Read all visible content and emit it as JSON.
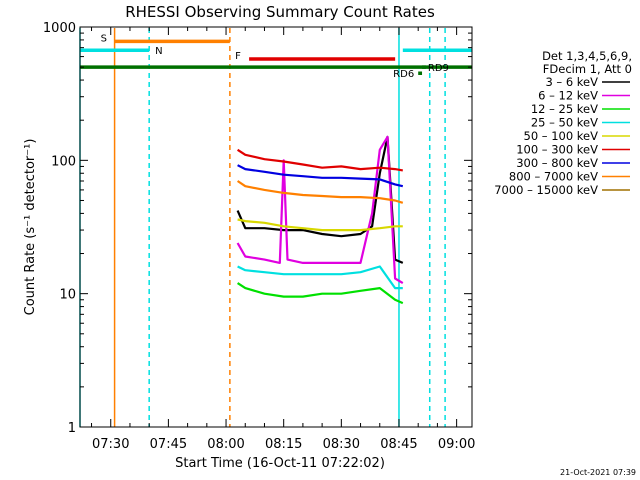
{
  "chart_data": {
    "type": "line",
    "title": "RHESSI Observing Summary Count Rates",
    "xlabel": "Start Time (16-Oct-11 07:22:02)",
    "ylabel": "Count Rate (s⁻¹ detector⁻¹)",
    "x_scale": "time",
    "y_scale": "log",
    "xlim": [
      "07:22",
      "09:04"
    ],
    "ylim": [
      1,
      1000
    ],
    "x_ticks": [
      "07:30",
      "07:45",
      "08:00",
      "08:15",
      "08:30",
      "08:45",
      "09:00"
    ],
    "y_ticks": [
      "1",
      "10",
      "100",
      "1000"
    ],
    "legend": {
      "position": "right",
      "header": [
        "Det 1,3,4,5,6,9,",
        "FDecim 1, Att 0"
      ],
      "entries": [
        {
          "label": "3 – 6 keV",
          "color": "#000000"
        },
        {
          "label": "6 – 12 keV",
          "color": "#e000e0"
        },
        {
          "label": "12 – 25 keV",
          "color": "#00e000"
        },
        {
          "label": "25 – 50 keV",
          "color": "#00e0e0"
        },
        {
          "label": "50 – 100 keV",
          "color": "#d8d800"
        },
        {
          "label": "100 – 300 keV",
          "color": "#e00000"
        },
        {
          "label": "300 – 800 keV",
          "color": "#0000e0"
        },
        {
          "label": "800 – 7000 keV",
          "color": "#ff8000"
        },
        {
          "label": "7000 – 15000 keV",
          "color": "#a07000"
        }
      ]
    },
    "series": [
      {
        "name": "3 – 6 keV",
        "color": "#000000",
        "x": [
          "08:03",
          "08:05",
          "08:10",
          "08:15",
          "08:20",
          "08:25",
          "08:30",
          "08:35",
          "08:38",
          "08:40",
          "08:42",
          "08:44",
          "08:46"
        ],
        "values": [
          42,
          31,
          31,
          30,
          30,
          28,
          27,
          28,
          32,
          80,
          150,
          18,
          17
        ]
      },
      {
        "name": "6 – 12 keV",
        "color": "#e000e0",
        "x": [
          "08:03",
          "08:05",
          "08:10",
          "08:14",
          "08:15",
          "08:16",
          "08:20",
          "08:25",
          "08:30",
          "08:35",
          "08:38",
          "08:40",
          "08:42",
          "08:44",
          "08:46"
        ],
        "values": [
          24,
          19,
          18,
          17,
          100,
          18,
          17,
          17,
          17,
          17,
          40,
          120,
          150,
          13,
          12
        ]
      },
      {
        "name": "12 – 25 keV",
        "color": "#00e000",
        "x": [
          "08:03",
          "08:05",
          "08:10",
          "08:15",
          "08:20",
          "08:25",
          "08:30",
          "08:35",
          "08:40",
          "08:44",
          "08:46"
        ],
        "values": [
          12,
          11,
          10,
          9.5,
          9.5,
          10,
          10,
          10.5,
          11,
          9,
          8.5
        ]
      },
      {
        "name": "25 – 50 keV",
        "color": "#00e0e0",
        "x": [
          "08:03",
          "08:05",
          "08:10",
          "08:15",
          "08:20",
          "08:25",
          "08:30",
          "08:35",
          "08:40",
          "08:44",
          "08:46"
        ],
        "values": [
          16,
          15,
          14.5,
          14,
          14,
          14,
          14,
          14.5,
          16,
          11,
          11
        ]
      },
      {
        "name": "50 – 100 keV",
        "color": "#d8d800",
        "x": [
          "08:03",
          "08:05",
          "08:10",
          "08:15",
          "08:20",
          "08:25",
          "08:30",
          "08:35",
          "08:40",
          "08:44",
          "08:46"
        ],
        "values": [
          36,
          35,
          34,
          32,
          31,
          30,
          30,
          30,
          31,
          32,
          32
        ]
      },
      {
        "name": "100 – 300 keV",
        "color": "#e00000",
        "x": [
          "08:03",
          "08:05",
          "08:10",
          "08:15",
          "08:20",
          "08:25",
          "08:30",
          "08:35",
          "08:40",
          "08:44",
          "08:46"
        ],
        "values": [
          120,
          110,
          102,
          98,
          93,
          88,
          90,
          86,
          88,
          86,
          84
        ]
      },
      {
        "name": "300 – 800 keV",
        "color": "#0000e0",
        "x": [
          "08:03",
          "08:05",
          "08:10",
          "08:15",
          "08:20",
          "08:25",
          "08:30",
          "08:35",
          "08:40",
          "08:44",
          "08:46"
        ],
        "values": [
          92,
          86,
          82,
          78,
          76,
          74,
          74,
          73,
          72,
          66,
          64
        ]
      },
      {
        "name": "800 – 7000 keV",
        "color": "#ff8000",
        "x": [
          "08:03",
          "08:05",
          "08:10",
          "08:15",
          "08:20",
          "08:25",
          "08:30",
          "08:35",
          "08:40",
          "08:44",
          "08:46"
        ],
        "values": [
          70,
          64,
          60,
          57,
          55,
          54,
          53,
          53,
          52,
          50,
          48
        ]
      }
    ],
    "flag_bars": [
      {
        "label": "S",
        "color": "#ff8000",
        "x": [
          "07:31",
          "08:01"
        ],
        "y": 780
      },
      {
        "label": "N",
        "color": "#00e0e0",
        "x": [
          "07:22",
          "07:40"
        ],
        "y": 670
      },
      {
        "label": "",
        "color": "#00e0e0",
        "x": [
          "08:46",
          "09:04"
        ],
        "y": 670
      },
      {
        "label": "F",
        "color": "#e00000",
        "x": [
          "08:06",
          "08:44"
        ],
        "y": 575
      },
      {
        "label": "",
        "color": "#007000",
        "x": [
          "07:22",
          "09:04"
        ],
        "y": 500
      },
      {
        "label": "RD6",
        "color": "#007000",
        "x": [
          "08:50",
          "08:51"
        ],
        "y": 450
      },
      {
        "label": "RD9",
        "color": "#007000",
        "x": [
          "08:51",
          "08:52"
        ],
        "y": 500
      }
    ],
    "vertical_lines": [
      {
        "x": "07:22",
        "color": "#00e0e0",
        "style": "solid"
      },
      {
        "x": "07:31",
        "color": "#ff8000",
        "style": "solid"
      },
      {
        "x": "07:40",
        "color": "#00e0e0",
        "style": "dashed"
      },
      {
        "x": "08:01",
        "color": "#ff8000",
        "style": "dashed"
      },
      {
        "x": "08:45",
        "color": "#00e0e0",
        "style": "solid"
      },
      {
        "x": "08:53",
        "color": "#00e0e0",
        "style": "dashed"
      },
      {
        "x": "08:57",
        "color": "#00e0e0",
        "style": "dashed"
      }
    ],
    "footer_timestamp": "21-Oct-2021 07:39"
  }
}
